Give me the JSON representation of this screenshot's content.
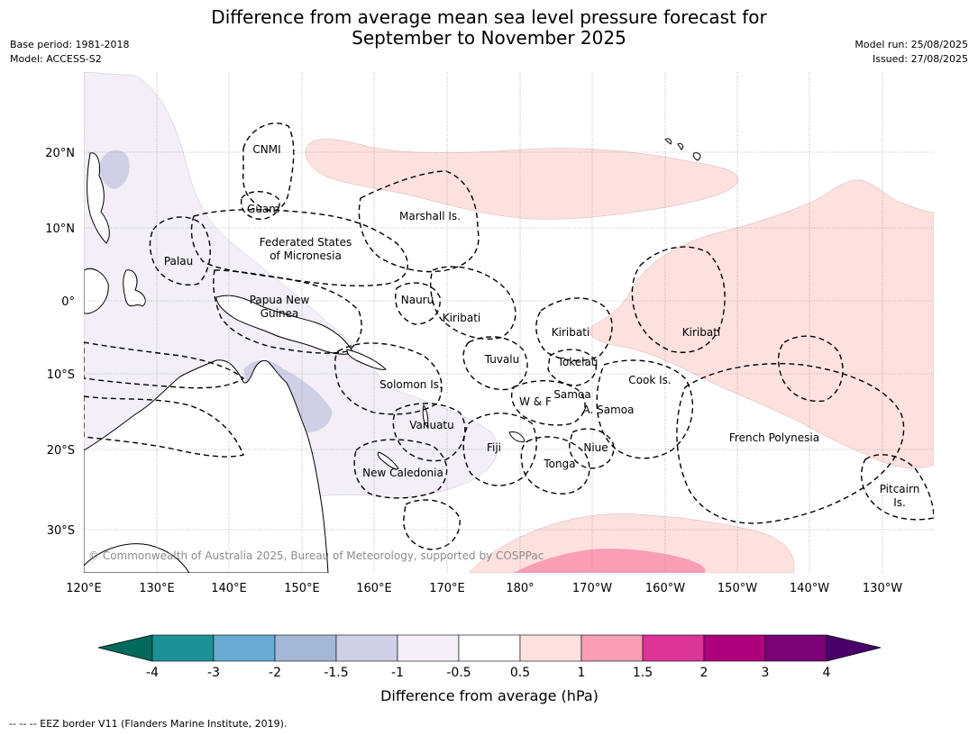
{
  "header": {
    "title_line1": "Difference from average mean sea level pressure forecast for",
    "title_line2": "September to November 2025",
    "base_period": "Base period: 1981-2018",
    "model": "Model: ACCESS-S2",
    "model_run": "Model run: 25/08/2025",
    "issued": "Issued: 27/08/2025"
  },
  "map": {
    "lon_ticks": [
      "120°E",
      "130°E",
      "140°E",
      "150°E",
      "160°E",
      "170°E",
      "180°",
      "170°W",
      "160°W",
      "150°W",
      "140°W",
      "130°W"
    ],
    "lat_ticks": [
      "20°N",
      "10°N",
      "0°",
      "10°S",
      "20°S",
      "30°S"
    ],
    "region_labels": {
      "cnmi": "CNMI",
      "guam": "Guam",
      "marshall": "Marshall Is.",
      "fsm_line1": "Federated States",
      "fsm_line2": "of Micronesia",
      "palau": "Palau",
      "png_line1": "Papua New",
      "png_line2": "Guinea",
      "nauru": "Nauru",
      "kiribati_west": "Kiribati",
      "kiribati_central": "Kiribati",
      "kiribati_east": "Kiribati",
      "tuvalu": "Tuvalu",
      "tokelau": "Tokelau",
      "solomon": "Solomon Is.",
      "wf": "W & F",
      "samoa": "Samoa",
      "am_samoa": "A. Samoa",
      "cook": "Cook Is.",
      "vanuatu": "Vanuatu",
      "fiji": "Fiji",
      "niue": "Niue",
      "tonga": "Tonga",
      "new_caledonia": "New Caledonia",
      "french_polynesia": "French Polynesia",
      "pitcairn_line1": "Pitcairn",
      "pitcairn_line2": "Is."
    },
    "copyright": "© Commonwealth of Australia 2025, Bureau of Meteorology, supported by COSPPac"
  },
  "legend": {
    "tick_labels": [
      "-4",
      "-3",
      "-2",
      "-1.5",
      "-1",
      "-0.5",
      "0.5",
      "1",
      "1.5",
      "2",
      "3",
      "4"
    ],
    "colors": [
      "#006a5a",
      "#1a9296",
      "#6aabd4",
      "#a5b7d6",
      "#cfcfe5",
      "#f3eef7",
      "#ffffff",
      "#fde1de",
      "#f99eb5",
      "#dd3497",
      "#ae017e",
      "#7a0177",
      "#49006a"
    ],
    "label": "Difference from average (hPa)"
  },
  "footer": {
    "eez_note": "--  --  -- EEZ border V11 (Flanders Marine Institute, 2019)."
  }
}
